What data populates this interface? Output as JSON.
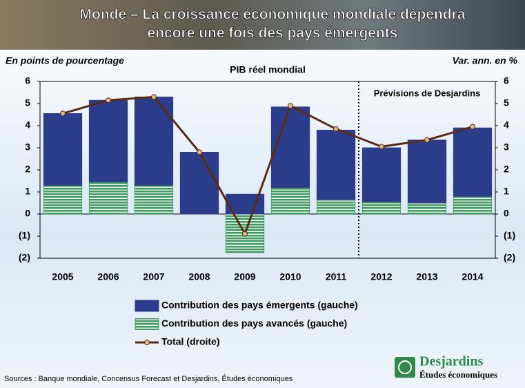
{
  "header": {
    "title_lines": [
      "Monde – La croissance économique mondiale dépendra",
      "encore une fois des pays émergents"
    ]
  },
  "chart_data": {
    "type": "bar",
    "title": "PIB réel mondial",
    "y_label": "En points de pourcentage",
    "y2_label": "Var. ann. en %",
    "annotation": "Prévisions de Desjardins",
    "forecast_from": "2012",
    "categories": [
      "2005",
      "2006",
      "2007",
      "2008",
      "2009",
      "2010",
      "2011",
      "2012",
      "2013",
      "2014"
    ],
    "series": [
      {
        "name": "Contribution des pays émergents (gauche)",
        "color": "#2b3d8a",
        "values": [
          3.25,
          3.7,
          4.0,
          2.8,
          0.9,
          3.65,
          3.15,
          2.45,
          2.85,
          3.1
        ]
      },
      {
        "name": "Contribution des pays avancés (gauche)",
        "color": "#3c9c5c",
        "values": [
          1.3,
          1.45,
          1.3,
          0.0,
          -1.75,
          1.2,
          0.65,
          0.55,
          0.5,
          0.8
        ]
      },
      {
        "name": "Total (droite)",
        "type": "line",
        "axis": "y2",
        "color": "#5a2a12",
        "values": [
          4.55,
          5.15,
          5.3,
          2.8,
          -0.9,
          4.9,
          3.85,
          3.05,
          3.35,
          3.95
        ]
      }
    ],
    "ylim": [
      -2,
      6
    ],
    "yticks": [
      {
        "value": -2,
        "label": "(2)"
      },
      {
        "value": -1,
        "label": "(1)"
      },
      0,
      1,
      2,
      3,
      4,
      5,
      6
    ],
    "y2lim": [
      -2,
      6
    ],
    "y2ticks": [
      {
        "value": -2,
        "label": "(2)"
      },
      {
        "value": -1,
        "label": "(1)"
      },
      0,
      1,
      2,
      3,
      4,
      5,
      6
    ]
  },
  "footer": {
    "source": "Sources : Banque mondiale, Concensus Forecast et Desjardins, Études économiques",
    "logo_name": "Desjardins",
    "logo_subtitle": "Études économiques"
  }
}
